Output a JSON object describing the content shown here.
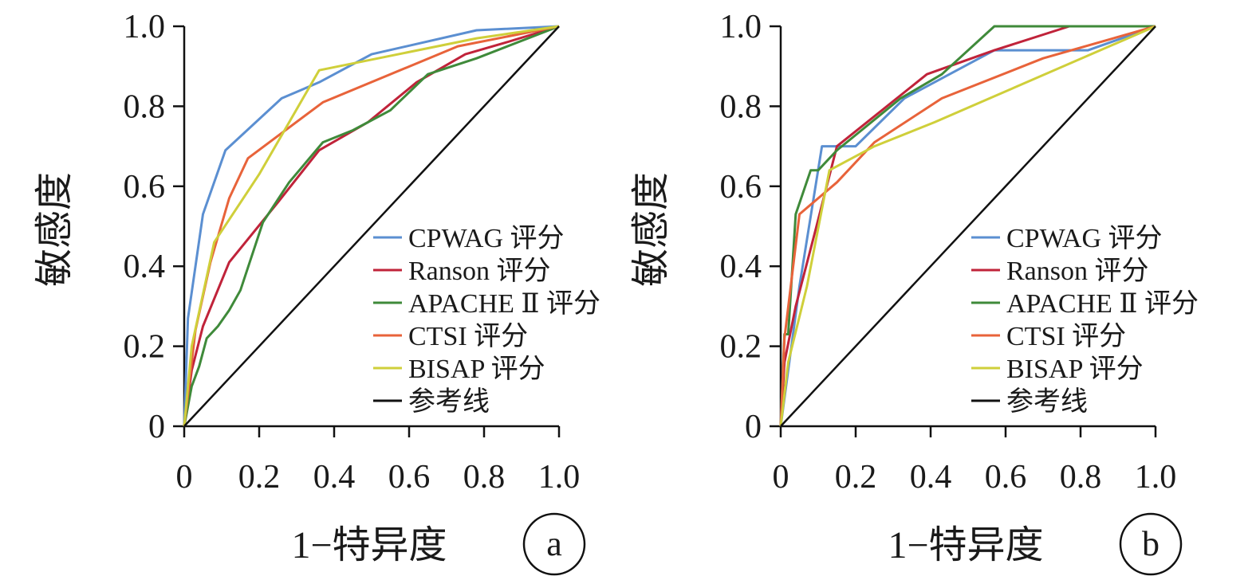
{
  "figure": {
    "panels": [
      "a",
      "b"
    ]
  },
  "chart_data": [
    {
      "type": "line",
      "panel_label": "a",
      "xlabel": "1−特异度",
      "ylabel": "敏感度",
      "xlim": [
        0,
        1.0
      ],
      "ylim": [
        0,
        1.0
      ],
      "xticks": [
        "0",
        "0.2",
        "0.4",
        "0.6",
        "0.8",
        "1.0"
      ],
      "yticks": [
        "0",
        "0.2",
        "0.4",
        "0.6",
        "0.8",
        "1.0"
      ],
      "grid": false,
      "legend_position": "right",
      "series": [
        {
          "name": "CPWAG 评分",
          "color": "#5b8fd1",
          "x": [
            0,
            0.01,
            0.05,
            0.11,
            0.26,
            0.36,
            0.5,
            0.78,
            1.0
          ],
          "y": [
            0,
            0.27,
            0.53,
            0.69,
            0.82,
            0.86,
            0.93,
            0.99,
            1.0
          ]
        },
        {
          "name": "Ranson 评分",
          "color": "#c0233a",
          "x": [
            0,
            0.02,
            0.05,
            0.12,
            0.25,
            0.36,
            0.49,
            0.62,
            0.75,
            0.86,
            1.0
          ],
          "y": [
            0,
            0.14,
            0.25,
            0.41,
            0.56,
            0.69,
            0.76,
            0.86,
            0.93,
            0.96,
            1.0
          ]
        },
        {
          "name": "APACHE Ⅱ 评分",
          "color": "#3f8a3a",
          "x": [
            0,
            0.02,
            0.04,
            0.06,
            0.09,
            0.12,
            0.15,
            0.21,
            0.28,
            0.37,
            0.45,
            0.55,
            0.65,
            0.78,
            1.0
          ],
          "y": [
            0,
            0.1,
            0.15,
            0.22,
            0.25,
            0.29,
            0.34,
            0.51,
            0.61,
            0.71,
            0.74,
            0.79,
            0.88,
            0.92,
            1.0
          ]
        },
        {
          "name": "CTSI 评分",
          "color": "#e8633a",
          "x": [
            0,
            0.03,
            0.07,
            0.12,
            0.17,
            0.37,
            0.73,
            1.0
          ],
          "y": [
            0,
            0.24,
            0.41,
            0.57,
            0.67,
            0.81,
            0.95,
            1.0
          ]
        },
        {
          "name": "BISAP 评分",
          "color": "#cfcf3a",
          "x": [
            0,
            0.02,
            0.08,
            0.2,
            0.36,
            0.78,
            1.0
          ],
          "y": [
            0,
            0.2,
            0.46,
            0.63,
            0.89,
            0.97,
            1.0
          ]
        },
        {
          "name": "参考线",
          "color": "#111111",
          "x": [
            0,
            1.0
          ],
          "y": [
            0,
            1.0
          ]
        }
      ]
    },
    {
      "type": "line",
      "panel_label": "b",
      "xlabel": "1−特异度",
      "ylabel": "敏感度",
      "xlim": [
        0,
        1.0
      ],
      "ylim": [
        0,
        1.0
      ],
      "xticks": [
        "0",
        "0.2",
        "0.4",
        "0.6",
        "0.8",
        "1.0"
      ],
      "yticks": [
        "0",
        "0.2",
        "0.4",
        "0.6",
        "0.8",
        "1.0"
      ],
      "grid": false,
      "legend_position": "right",
      "series": [
        {
          "name": "CPWAG 评分",
          "color": "#5b8fd1",
          "x": [
            0,
            0.05,
            0.11,
            0.2,
            0.33,
            0.57,
            0.82,
            1.0
          ],
          "y": [
            0,
            0.35,
            0.7,
            0.7,
            0.82,
            0.94,
            0.94,
            1.0
          ]
        },
        {
          "name": "Ranson 评分",
          "color": "#c0233a",
          "x": [
            0,
            0.01,
            0.04,
            0.09,
            0.15,
            0.27,
            0.39,
            0.57,
            0.77,
            1.0
          ],
          "y": [
            0,
            0.16,
            0.3,
            0.48,
            0.7,
            0.79,
            0.88,
            0.94,
            1.0,
            1.0
          ]
        },
        {
          "name": "APACHE Ⅱ 评分",
          "color": "#3f8a3a",
          "x": [
            0,
            0.01,
            0.02,
            0.04,
            0.08,
            0.1,
            0.15,
            0.32,
            0.43,
            0.57,
            1.0
          ],
          "y": [
            0,
            0.23,
            0.23,
            0.53,
            0.64,
            0.64,
            0.69,
            0.82,
            0.88,
            1.0,
            1.0
          ]
        },
        {
          "name": "CTSI 评分",
          "color": "#e8633a",
          "x": [
            0,
            0.01,
            0.05,
            0.15,
            0.25,
            0.43,
            0.7,
            1.0
          ],
          "y": [
            0,
            0.22,
            0.53,
            0.61,
            0.71,
            0.82,
            0.92,
            1.0
          ]
        },
        {
          "name": "BISAP 评分",
          "color": "#cfcf3a",
          "x": [
            0,
            0.02,
            0.07,
            0.13,
            0.25,
            0.41,
            1.0
          ],
          "y": [
            0,
            0.16,
            0.35,
            0.64,
            0.7,
            0.76,
            1.0
          ]
        },
        {
          "name": "参考线",
          "color": "#111111",
          "x": [
            0,
            1.0
          ],
          "y": [
            0,
            1.0
          ]
        }
      ]
    }
  ]
}
